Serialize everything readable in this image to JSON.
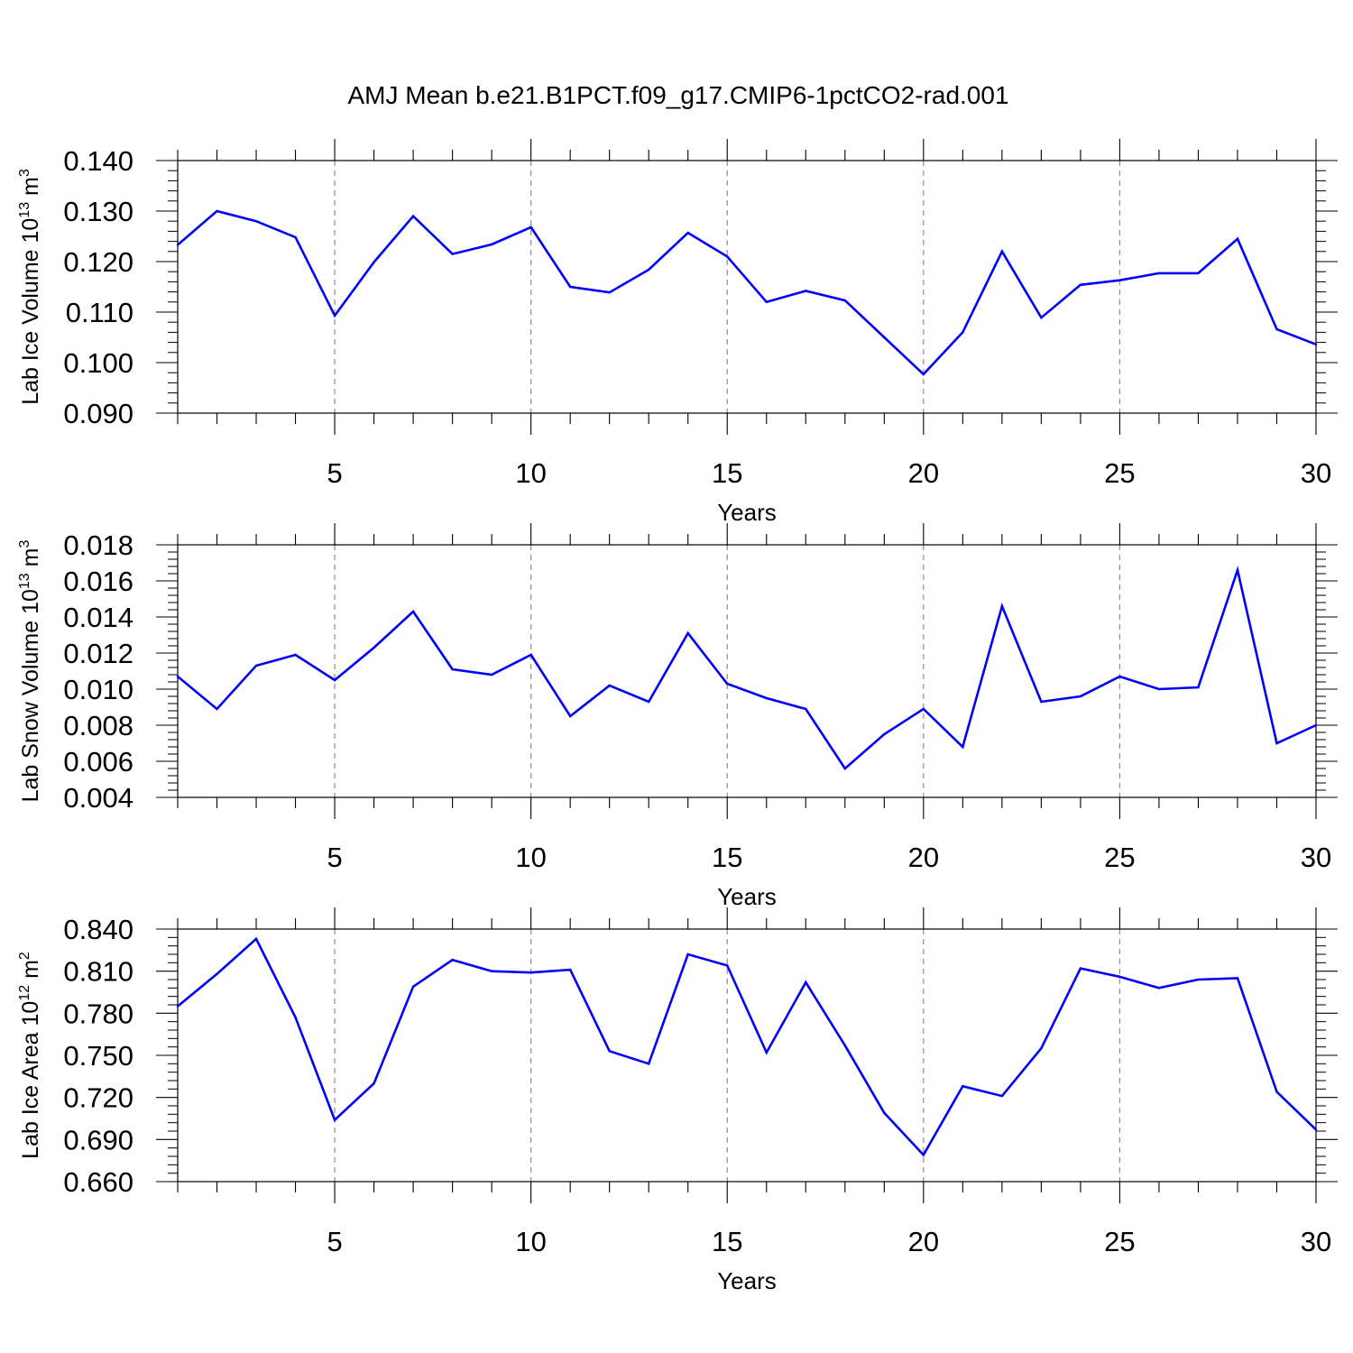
{
  "figure_title": "AMJ Mean b.e21.B1PCT.f09_g17.CMIP6-1pctCO2-rad.001",
  "colors": {
    "series": "#0000ff",
    "axis": "#000000",
    "grid": "#8c8c8c"
  },
  "chart_data": [
    {
      "type": "line",
      "ylabel": "Lab Ice Volume",
      "yunit_base": "10",
      "yunit_exp": "13",
      "yunit_sym": "m",
      "yunit_pow": "3",
      "xlabel": "Years",
      "xlim": [
        1,
        30
      ],
      "ylim": [
        0.09,
        0.14
      ],
      "yticks": [
        "0.090",
        "0.100",
        "0.110",
        "0.120",
        "0.130",
        "0.140"
      ],
      "xticks": [
        "5",
        "10",
        "15",
        "20",
        "25",
        "30"
      ],
      "grid": "vertical dashed at x ticks",
      "x": [
        1,
        2,
        3,
        4,
        5,
        6,
        7,
        8,
        9,
        10,
        11,
        12,
        13,
        14,
        15,
        16,
        17,
        18,
        19,
        20,
        21,
        22,
        23,
        24,
        25,
        26,
        27,
        28,
        29,
        30
      ],
      "values": [
        0.1233,
        0.13,
        0.128,
        0.1248,
        0.1093,
        0.1199,
        0.129,
        0.1215,
        0.1234,
        0.1268,
        0.115,
        0.1139,
        0.1184,
        0.1257,
        0.121,
        0.112,
        0.1142,
        0.1123,
        0.105,
        0.0977,
        0.106,
        0.122,
        0.1089,
        0.1154,
        0.1163,
        0.1177,
        0.1177,
        0.1245,
        0.1066,
        0.1036
      ]
    },
    {
      "type": "line",
      "ylabel": "Lab Snow Volume",
      "yunit_base": "10",
      "yunit_exp": "13",
      "yunit_sym": "m",
      "yunit_pow": "3",
      "xlabel": "Years",
      "xlim": [
        1,
        30
      ],
      "ylim": [
        0.004,
        0.018
      ],
      "yticks": [
        "0.004",
        "0.006",
        "0.008",
        "0.010",
        "0.012",
        "0.014",
        "0.016",
        "0.018"
      ],
      "xticks": [
        "5",
        "10",
        "15",
        "20",
        "25",
        "30"
      ],
      "grid": "vertical dashed at x ticks",
      "x": [
        1,
        2,
        3,
        4,
        5,
        6,
        7,
        8,
        9,
        10,
        11,
        12,
        13,
        14,
        15,
        16,
        17,
        18,
        19,
        20,
        21,
        22,
        23,
        24,
        25,
        26,
        27,
        28,
        29,
        30
      ],
      "values": [
        0.0107,
        0.0089,
        0.0113,
        0.0119,
        0.0105,
        0.0123,
        0.0143,
        0.0111,
        0.0108,
        0.0119,
        0.0085,
        0.0102,
        0.0093,
        0.0131,
        0.0103,
        0.0095,
        0.0089,
        0.0056,
        0.0075,
        0.0089,
        0.0068,
        0.0146,
        0.0093,
        0.0096,
        0.0107,
        0.01,
        0.0101,
        0.0166,
        0.007,
        0.008
      ]
    },
    {
      "type": "line",
      "ylabel": "Lab Ice Area",
      "yunit_base": "10",
      "yunit_exp": "12",
      "yunit_sym": "m",
      "yunit_pow": "2",
      "xlabel": "Years",
      "xlim": [
        1,
        30
      ],
      "ylim": [
        0.66,
        0.84
      ],
      "yticks": [
        "0.660",
        "0.690",
        "0.720",
        "0.750",
        "0.780",
        "0.810",
        "0.840"
      ],
      "xticks": [
        "5",
        "10",
        "15",
        "20",
        "25",
        "30"
      ],
      "grid": "vertical dashed at x ticks",
      "x": [
        1,
        2,
        3,
        4,
        5,
        6,
        7,
        8,
        9,
        10,
        11,
        12,
        13,
        14,
        15,
        16,
        17,
        18,
        19,
        20,
        21,
        22,
        23,
        24,
        25,
        26,
        27,
        28,
        29,
        30
      ],
      "values": [
        0.785,
        0.808,
        0.833,
        0.777,
        0.704,
        0.73,
        0.799,
        0.818,
        0.81,
        0.809,
        0.811,
        0.753,
        0.744,
        0.822,
        0.814,
        0.752,
        0.802,
        0.757,
        0.709,
        0.679,
        0.728,
        0.721,
        0.755,
        0.812,
        0.806,
        0.798,
        0.804,
        0.805,
        0.724,
        0.697
      ]
    }
  ]
}
